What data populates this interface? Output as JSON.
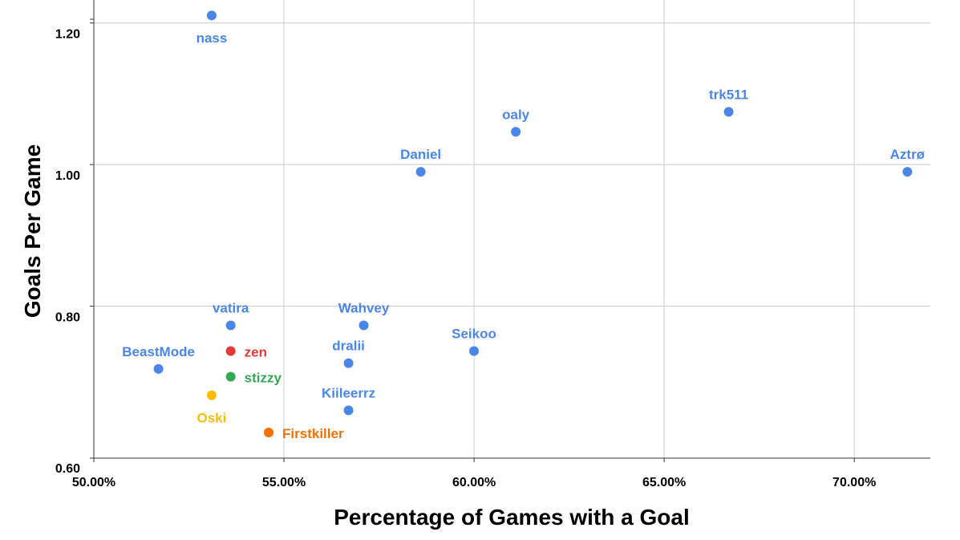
{
  "chart_data": {
    "type": "scatter",
    "title": "",
    "xlabel": "Percentage of Games with a Goal",
    "ylabel": "Goals Per Game",
    "xlim": [
      50,
      72
    ],
    "ylim": [
      0.6,
      1.22
    ],
    "x_ticks": [
      50,
      55,
      60,
      65,
      70
    ],
    "x_tick_labels": [
      "50.00%",
      "55.00%",
      "60.00%",
      "65.00%",
      "70.00%"
    ],
    "y_ticks": [
      0.6,
      0.8,
      1.0,
      1.2
    ],
    "y_tick_labels": [
      "0.60",
      "0.80",
      "1.00",
      "1.20"
    ],
    "grid": true,
    "colors": {
      "blue": "#4a86e8",
      "red": "#e53935",
      "green": "#34a853",
      "yellow": "#fbbc04",
      "orange": "#f57000"
    },
    "points": [
      {
        "name": "nass",
        "x": 53.1,
        "y": 1.22,
        "color": "blue",
        "label_pos": "below"
      },
      {
        "name": "trk511",
        "x": 66.7,
        "y": 1.085,
        "color": "blue",
        "label_pos": "above"
      },
      {
        "name": "oaly",
        "x": 61.1,
        "y": 1.057,
        "color": "blue",
        "label_pos": "above"
      },
      {
        "name": "Daniel",
        "x": 58.6,
        "y": 1.001,
        "color": "blue",
        "label_pos": "above"
      },
      {
        "name": "Aztrø",
        "x": 71.4,
        "y": 1.001,
        "color": "blue",
        "label_pos": "above"
      },
      {
        "name": "vatira",
        "x": 53.6,
        "y": 0.786,
        "color": "blue",
        "label_pos": "above"
      },
      {
        "name": "Wahvey",
        "x": 57.1,
        "y": 0.786,
        "color": "blue",
        "label_pos": "above"
      },
      {
        "name": "Seikoo",
        "x": 60.0,
        "y": 0.75,
        "color": "blue",
        "label_pos": "above"
      },
      {
        "name": "dralii",
        "x": 56.7,
        "y": 0.733,
        "color": "blue",
        "label_pos": "above"
      },
      {
        "name": "BeastMode",
        "x": 51.7,
        "y": 0.725,
        "color": "blue",
        "label_pos": "above"
      },
      {
        "name": "zen",
        "x": 53.6,
        "y": 0.75,
        "color": "red",
        "label_pos": "right"
      },
      {
        "name": "stizzy",
        "x": 53.6,
        "y": 0.714,
        "color": "green",
        "label_pos": "right"
      },
      {
        "name": "Oski",
        "x": 53.1,
        "y": 0.688,
        "color": "yellow",
        "label_pos": "below"
      },
      {
        "name": "Kiileerrz",
        "x": 56.7,
        "y": 0.667,
        "color": "blue",
        "label_pos": "above"
      },
      {
        "name": "Firstkiller",
        "x": 54.6,
        "y": 0.636,
        "color": "orange",
        "label_pos": "right"
      }
    ]
  }
}
